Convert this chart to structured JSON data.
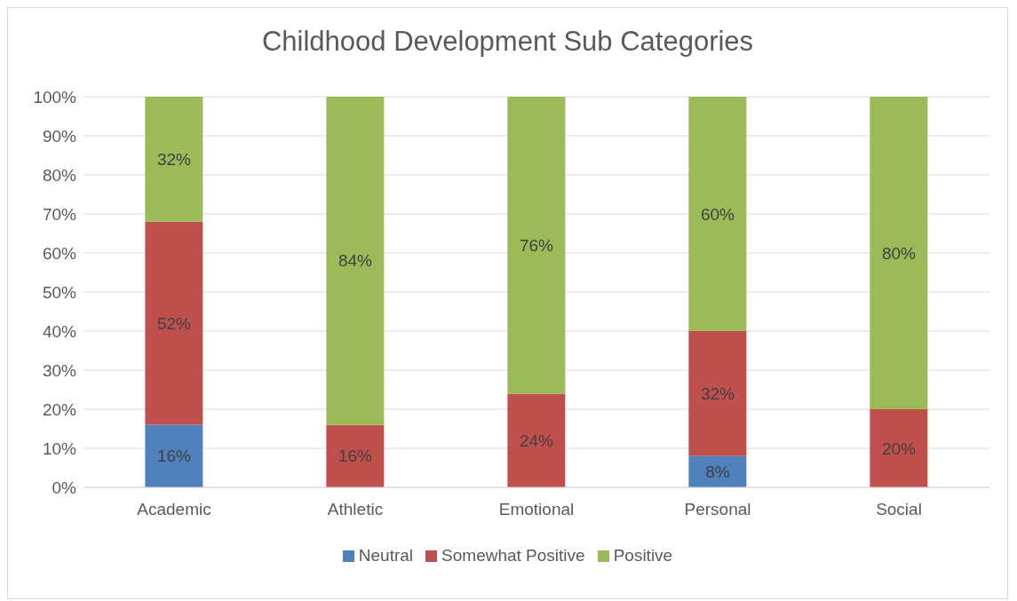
{
  "chart_data": {
    "type": "bar",
    "title": "Childhood Development Sub Categories",
    "categories": [
      "Academic",
      "Athletic",
      "Emotional",
      "Personal",
      "Social"
    ],
    "stacked": true,
    "series": [
      {
        "name": "Neutral",
        "color": "#4f81bd",
        "values": [
          16,
          0,
          0,
          8,
          0
        ],
        "value_labels": [
          "16%",
          null,
          null,
          "8%",
          null
        ]
      },
      {
        "name": "Somewhat Positive",
        "color": "#c0504d",
        "values": [
          52,
          16,
          24,
          32,
          20
        ],
        "value_labels": [
          "52%",
          "16%",
          "24%",
          "32%",
          "20%"
        ]
      },
      {
        "name": "Positive",
        "color": "#9bbb59",
        "values": [
          32,
          84,
          76,
          60,
          80
        ],
        "value_labels": [
          "32%",
          "84%",
          "76%",
          "60%",
          "80%"
        ]
      }
    ],
    "ylim": [
      0,
      100
    ],
    "yticks": [
      {
        "value": 0,
        "label": "0%"
      },
      {
        "value": 10,
        "label": "10%"
      },
      {
        "value": 20,
        "label": "20%"
      },
      {
        "value": 30,
        "label": "30%"
      },
      {
        "value": 40,
        "label": "40%"
      },
      {
        "value": 50,
        "label": "50%"
      },
      {
        "value": 60,
        "label": "60%"
      },
      {
        "value": 70,
        "label": "70%"
      },
      {
        "value": 80,
        "label": "80%"
      },
      {
        "value": 90,
        "label": "90%"
      },
      {
        "value": 100,
        "label": "100%"
      }
    ],
    "grid": "y",
    "legend": "bottom"
  }
}
